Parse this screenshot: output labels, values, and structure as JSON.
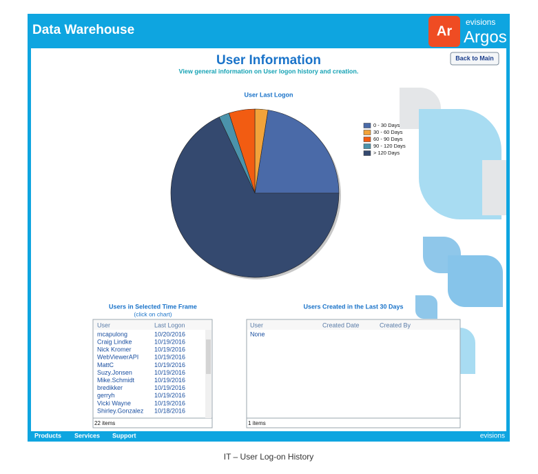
{
  "header": {
    "title": "Data Warehouse",
    "logo_mark": "Ar",
    "logo_brand": "evisions",
    "logo_product": "Argos"
  },
  "page": {
    "title": "User Information",
    "subtitle": "View general information on User logon history and creation.",
    "back_button": "Back to Main"
  },
  "chart_data": {
    "type": "pie",
    "title": "User Last Logon",
    "categories": [
      "0 - 30 Days",
      "30 - 60 Days",
      "60 - 90 Days",
      "90 - 120 Days",
      "> 120 Days"
    ],
    "values": [
      22.5,
      2.5,
      5,
      2,
      68
    ],
    "colors": [
      "#4a6aa8",
      "#f2a33a",
      "#f25c12",
      "#4b93ab",
      "#34496f"
    ],
    "legend": "right"
  },
  "users_panel": {
    "title": "Users in Selected Time Frame",
    "hint": "(click on chart)",
    "columns": [
      "User",
      "Last Logon"
    ],
    "rows": [
      [
        "mcapulong",
        "10/20/2016"
      ],
      [
        "Craig Lindke",
        "10/19/2016"
      ],
      [
        "Nick Kromer",
        "10/19/2016"
      ],
      [
        "WebViewerAPI",
        "10/19/2016"
      ],
      [
        "MattC",
        "10/19/2016"
      ],
      [
        "Suzy.Jonsen",
        "10/19/2016"
      ],
      [
        "Mike.Schmidt",
        "10/19/2016"
      ],
      [
        "bredikker",
        "10/19/2016"
      ],
      [
        "gerryh",
        "10/19/2016"
      ],
      [
        "Vicki Wayne",
        "10/19/2016"
      ],
      [
        "Shirley.Gonzalez",
        "10/18/2016"
      ]
    ],
    "footer": "22 items"
  },
  "created_panel": {
    "title": "Users Created in the Last 30 Days",
    "columns": [
      "User",
      "Created Date",
      "Created By"
    ],
    "rows": [
      [
        "None"
      ]
    ],
    "footer": "1 items"
  },
  "footer": {
    "links": [
      "Products",
      "Services",
      "Support"
    ],
    "brand": "evisions"
  },
  "caption": "IT – User Log-on History"
}
